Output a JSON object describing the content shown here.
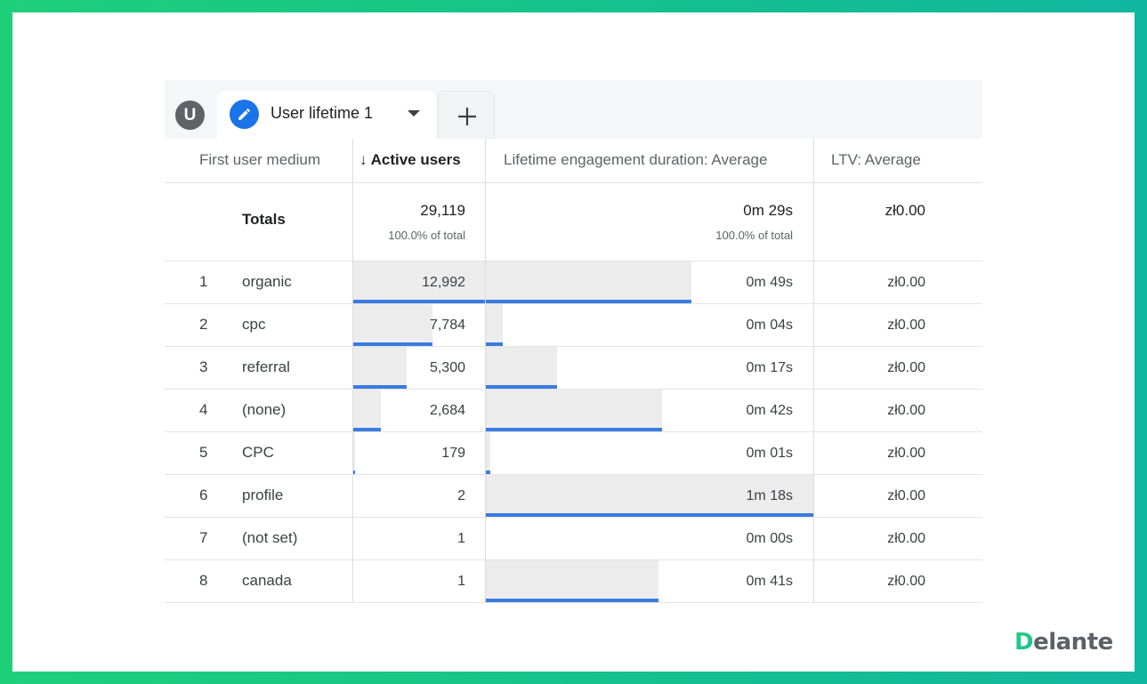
{
  "tabs": {
    "avatar_letter": "U",
    "active_label": "User lifetime 1",
    "add_label": "+"
  },
  "table": {
    "headers": {
      "dimension": "First user medium",
      "active_users": "↓ Active users",
      "engagement": "Lifetime engagement duration: Average",
      "ltv": "LTV: Average"
    },
    "totals": {
      "label": "Totals",
      "active_users": "29,119",
      "active_users_pct": "100.0% of total",
      "engagement": "0m 29s",
      "engagement_pct": "100.0% of total",
      "ltv": "zł0.00"
    },
    "rows": [
      {
        "index": "1",
        "medium": "organic",
        "active_users": "12,992",
        "engagement": "0m 49s",
        "ltv": "zł0.00",
        "users_fraction": 1.0,
        "engagement_fraction": 0.628
      },
      {
        "index": "2",
        "medium": "cpc",
        "active_users": "7,784",
        "engagement": "0m 04s",
        "ltv": "zł0.00",
        "users_fraction": 0.599,
        "engagement_fraction": 0.051
      },
      {
        "index": "3",
        "medium": "referral",
        "active_users": "5,300",
        "engagement": "0m 17s",
        "ltv": "zł0.00",
        "users_fraction": 0.408,
        "engagement_fraction": 0.218
      },
      {
        "index": "4",
        "medium": "(none)",
        "active_users": "2,684",
        "engagement": "0m 42s",
        "ltv": "zł0.00",
        "users_fraction": 0.207,
        "engagement_fraction": 0.538
      },
      {
        "index": "5",
        "medium": "CPC",
        "active_users": "179",
        "engagement": "0m 01s",
        "ltv": "zł0.00",
        "users_fraction": 0.014,
        "engagement_fraction": 0.013
      },
      {
        "index": "6",
        "medium": "profile",
        "active_users": "2",
        "engagement": "1m 18s",
        "ltv": "zł0.00",
        "users_fraction": 0.0,
        "engagement_fraction": 1.0
      },
      {
        "index": "7",
        "medium": "(not set)",
        "active_users": "1",
        "engagement": "0m 00s",
        "ltv": "zł0.00",
        "users_fraction": 0.0,
        "engagement_fraction": 0.0
      },
      {
        "index": "8",
        "medium": "canada",
        "active_users": "1",
        "engagement": "0m 41s",
        "ltv": "zł0.00",
        "users_fraction": 0.0,
        "engagement_fraction": 0.526
      }
    ]
  },
  "brand": {
    "logo_first": "D",
    "logo_rest": "elante"
  },
  "colors": {
    "accent": "#1a73e8",
    "bar_line": "#3a7be0",
    "bar_fill": "#ececec",
    "frame": "#14c08f"
  },
  "icons": {
    "avatar": "user-avatar-icon",
    "edit": "pencil-icon",
    "dropdown": "caret-down-icon",
    "add": "plus-icon"
  }
}
